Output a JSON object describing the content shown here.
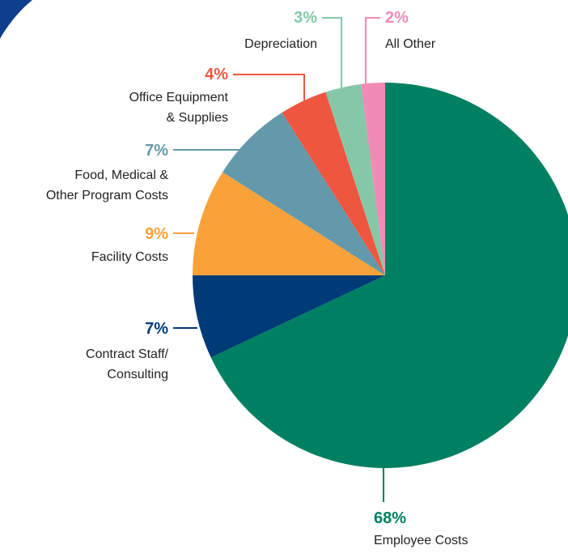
{
  "chart_data": {
    "type": "pie",
    "categories": [
      "Employee Costs",
      "Contract Staff/\nConsulting",
      "Facility Costs",
      "Food, Medical &\nOther Program Costs",
      "Office Equipment\n& Supplies",
      "Depreciation",
      "All Other"
    ],
    "values": [
      68,
      7,
      9,
      7,
      4,
      3,
      2
    ],
    "value_labels": [
      "68%",
      "7%",
      "9%",
      "7%",
      "4%",
      "3%",
      "2%"
    ],
    "colors": [
      "#008062",
      "#003b78",
      "#f9a23a",
      "#6399ab",
      "#ef563f",
      "#86c7a8",
      "#f08bb6"
    ]
  }
}
